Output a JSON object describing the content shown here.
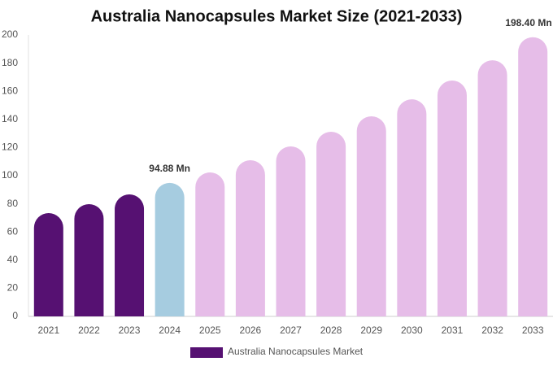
{
  "chart_data": {
    "type": "bar",
    "title": "Australia Nanocapsules Market Size (2021-2033)",
    "categories": [
      "2021",
      "2022",
      "2023",
      "2024",
      "2025",
      "2026",
      "2027",
      "2028",
      "2029",
      "2030",
      "2031",
      "2032",
      "2033"
    ],
    "series": [
      {
        "name": "Australia Nanocapsules Market",
        "color": "#561172",
        "colors": [
          "#561172",
          "#561172",
          "#561172",
          "#a6cce0",
          "#e6bde8",
          "#e6bde8",
          "#e6bde8",
          "#e6bde8",
          "#e6bde8",
          "#e6bde8",
          "#e6bde8",
          "#e6bde8",
          "#e6bde8"
        ],
        "values": [
          73.4,
          79.8,
          86.7,
          94.88,
          102.3,
          111,
          120.8,
          131.2,
          142.2,
          154.3,
          167.6,
          182,
          198.4
        ],
        "value_labels": [
          null,
          null,
          null,
          "94.88 Mn",
          null,
          null,
          null,
          null,
          null,
          null,
          null,
          null,
          "198.40 Mn"
        ]
      }
    ],
    "ylim": [
      0,
      200
    ],
    "yticks": [
      0,
      20,
      40,
      60,
      80,
      100,
      120,
      140,
      160,
      180,
      200
    ],
    "grid": false
  }
}
